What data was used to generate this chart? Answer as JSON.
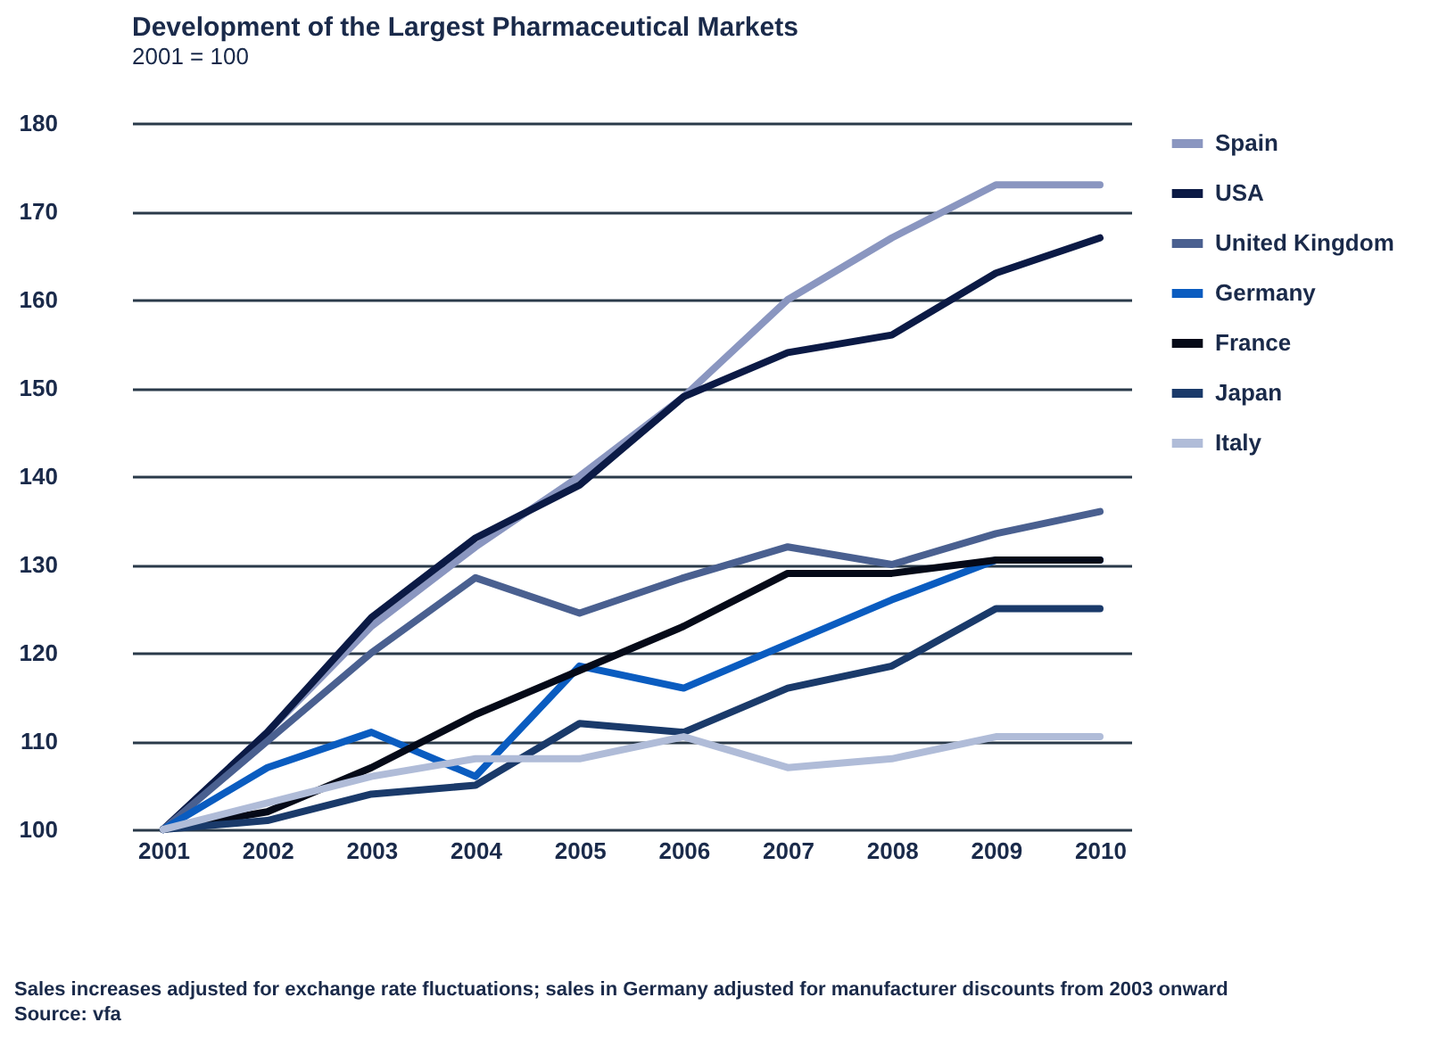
{
  "chart_data": {
    "type": "line",
    "title": "Development of the Largest Pharmaceutical Markets",
    "subtitle": "2001 = 100",
    "categories": [
      "2001",
      "2002",
      "2003",
      "2004",
      "2005",
      "2006",
      "2007",
      "2008",
      "2009",
      "2010"
    ],
    "series": [
      {
        "name": "Spain",
        "color": "#8a96c0",
        "values": [
          100,
          111,
          123,
          132,
          140,
          149,
          160,
          167,
          173,
          173
        ]
      },
      {
        "name": "USA",
        "color": "#0b1a45",
        "values": [
          100,
          111,
          124,
          133,
          139,
          149,
          154,
          156,
          163,
          167
        ]
      },
      {
        "name": "United Kingdom",
        "color": "#4a6090",
        "values": [
          100,
          110,
          120,
          128.5,
          124.5,
          128.5,
          132,
          130,
          133.5,
          136
        ]
      },
      {
        "name": "Germany",
        "color": "#0a5cc0",
        "values": [
          100,
          107,
          111,
          106,
          118.5,
          116,
          121,
          126,
          130.5,
          130.5
        ]
      },
      {
        "name": "France",
        "color": "#050a18",
        "values": [
          100,
          102,
          107,
          113,
          118,
          123,
          129,
          129,
          130.5,
          130.5
        ]
      },
      {
        "name": "Japan",
        "color": "#1a3a6a",
        "values": [
          100,
          101,
          104,
          105,
          112,
          111,
          116,
          118.5,
          125,
          125
        ]
      },
      {
        "name": "Italy",
        "color": "#b0bcd8",
        "values": [
          100,
          103,
          106,
          108,
          108,
          110.5,
          107,
          108,
          110.5,
          110.5
        ]
      }
    ],
    "ylim": [
      100,
      180
    ],
    "yticks": [
      100,
      110,
      120,
      130,
      140,
      150,
      160,
      170,
      180
    ],
    "grid": "y",
    "legend": "right",
    "marker": "none",
    "line_style": "solid",
    "annotations": [
      "Sales increases adjusted for exchange rate fluctuations; sales in Germany adjusted for manufacturer discounts from 2003 onward",
      "Source: vfa"
    ]
  }
}
